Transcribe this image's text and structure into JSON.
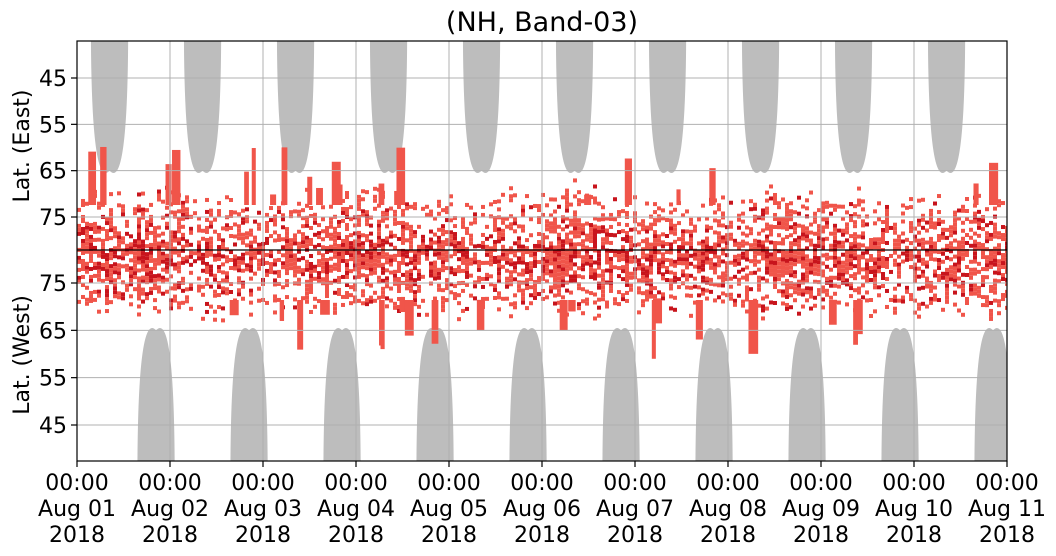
{
  "chart_data": {
    "type": "heatmap",
    "title": "(NH, Band-03)",
    "ylabel_top": "Lat. (East)",
    "ylabel_bottom": "Lat. (West)",
    "xlim": [
      "2018-08-01 00:00",
      "2018-08-11 00:00"
    ],
    "x_ticks": [
      {
        "time": "00:00",
        "date": "Aug 01",
        "year": "2018"
      },
      {
        "time": "00:00",
        "date": "Aug 02",
        "year": "2018"
      },
      {
        "time": "00:00",
        "date": "Aug 03",
        "year": "2018"
      },
      {
        "time": "00:00",
        "date": "Aug 04",
        "year": "2018"
      },
      {
        "time": "00:00",
        "date": "Aug 05",
        "year": "2018"
      },
      {
        "time": "00:00",
        "date": "Aug 06",
        "year": "2018"
      },
      {
        "time": "00:00",
        "date": "Aug 07",
        "year": "2018"
      },
      {
        "time": "00:00",
        "date": "Aug 08",
        "year": "2018"
      },
      {
        "time": "00:00",
        "date": "Aug 09",
        "year": "2018"
      },
      {
        "time": "00:00",
        "date": "Aug 10",
        "year": "2018"
      },
      {
        "time": "00:00",
        "date": "Aug 11",
        "year": "2018"
      }
    ],
    "y_ticks_east": [
      "45",
      "55",
      "65",
      "75"
    ],
    "y_ticks_west": [
      "75",
      "65",
      "55",
      "45"
    ],
    "grid": true,
    "colors": {
      "night_shading": "#bdbdbd",
      "activity_light": "#f0554a",
      "activity_dark": "#c8141c",
      "grid": "#b0b0b0"
    },
    "night_shading_east_centers_day": [
      0.35,
      1.35,
      2.35,
      3.35,
      4.35,
      5.35,
      6.35,
      7.35,
      8.35,
      9.35
    ],
    "night_shading_west_centers_day": [
      0.85,
      1.85,
      2.85,
      3.85,
      4.85,
      5.85,
      6.85,
      7.85,
      8.85,
      9.85
    ],
    "night_shading_min_lat": 65,
    "activity_band_lat": [
      65,
      85
    ]
  }
}
